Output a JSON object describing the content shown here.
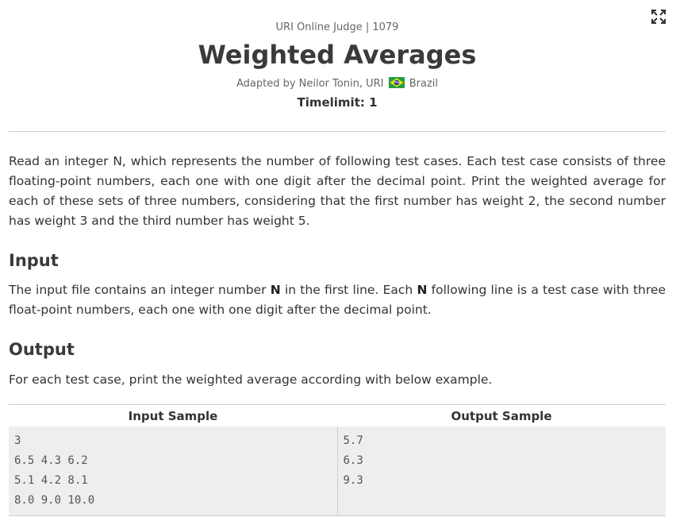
{
  "header": {
    "judge_line": "URI Online Judge | 1079",
    "title": "Weighted Averages",
    "adapted_by": "Adapted by Neilor Tonin, URI",
    "country": "Brazil",
    "flag_icon": "brazil-flag-icon",
    "timelimit": "Timelimit: 1"
  },
  "toolbar": {
    "expand_icon": "fullscreen-expand-icon"
  },
  "description": "Read an integer N, which represents the number of following test cases. Each test case consists of three floating-point numbers, each one with one digit after the decimal point. Print the weighted average for each of these sets of three numbers, considering that the first number has weight 2, the second number has weight 3 and the third number has weight 5.",
  "input_section": {
    "heading": "Input",
    "text_part1": "The input file contains an integer number ",
    "bold1": "N",
    "text_part2": " in the first line. Each ",
    "bold2": "N",
    "text_part3": " following line is a test case with three float-point numbers, each one with one digit after the decimal point."
  },
  "output_section": {
    "heading": "Output",
    "text": "For each test case, print the weighted average according with below example."
  },
  "sample_table": {
    "input_header": "Input Sample",
    "output_header": "Output Sample",
    "input_text": "3\n6.5 4.3 6.2\n5.1 4.2 8.1\n8.0 9.0 10.0",
    "output_text": "5.7\n6.3\n9.3"
  },
  "colors": {
    "brazil_green": "#229e45",
    "brazil_yellow": "#f8e509",
    "brazil_blue": "#2b49a3"
  }
}
